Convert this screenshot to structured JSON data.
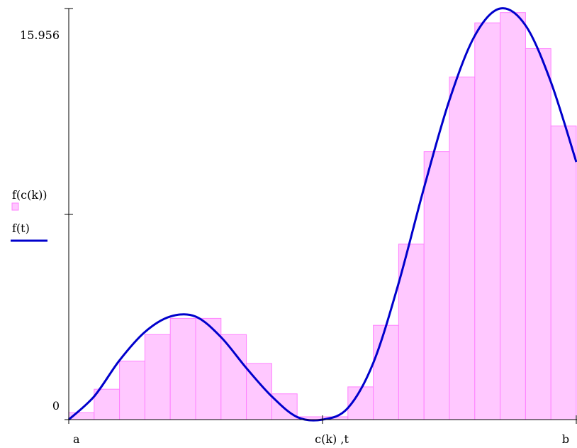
{
  "chart_data": {
    "type": "bar",
    "title": "",
    "xlabel": "c(k) ,t",
    "ylabel": "",
    "x_range_labels": {
      "start": "a",
      "end": "b"
    },
    "x_range": [
      0,
      20
    ],
    "ylim": [
      0,
      15.956
    ],
    "y_ticks_labeled": [
      {
        "value": 0,
        "label": "0"
      },
      {
        "value": 15.956,
        "label": "15.956"
      }
    ],
    "legend": {
      "placement": "left",
      "entries": [
        {
          "name": "f(c(k))",
          "style": "bars",
          "color": "#ff80ff"
        },
        {
          "name": "f(t)",
          "style": "line",
          "color": "#0000cc"
        }
      ]
    },
    "bar_width": 1,
    "bar_left_edges": [
      0,
      1,
      2,
      3,
      4,
      5,
      6,
      7,
      8,
      9,
      10,
      11,
      12,
      13,
      14,
      15,
      16,
      17,
      18,
      19
    ],
    "series": [
      {
        "name": "f(c(k))",
        "type": "bar",
        "values": [
          0.27,
          1.18,
          2.27,
          3.3,
          3.93,
          3.93,
          3.3,
          2.18,
          1.0,
          0.11,
          0.11,
          1.27,
          3.66,
          6.81,
          10.4,
          13.3,
          15.4,
          15.8,
          14.4,
          11.4
        ]
      },
      {
        "name": "f(t)",
        "type": "line",
        "x": [
          0,
          1,
          2,
          3,
          4,
          5,
          6,
          7,
          8,
          9,
          10,
          11,
          12,
          13,
          14,
          15,
          16,
          17,
          18,
          19,
          20
        ],
        "values": [
          0.0,
          0.9,
          2.3,
          3.4,
          4.0,
          4.0,
          3.2,
          2.0,
          0.9,
          0.1,
          0.0,
          0.45,
          2.2,
          5.3,
          9.0,
          12.4,
          14.9,
          15.956,
          15.3,
          13.1,
          10.0
        ]
      }
    ],
    "colors": {
      "bar_fill": "#ffc8ff",
      "bar_stroke": "#ff80ff",
      "curve": "#0000cc",
      "axis": "#000000"
    }
  }
}
